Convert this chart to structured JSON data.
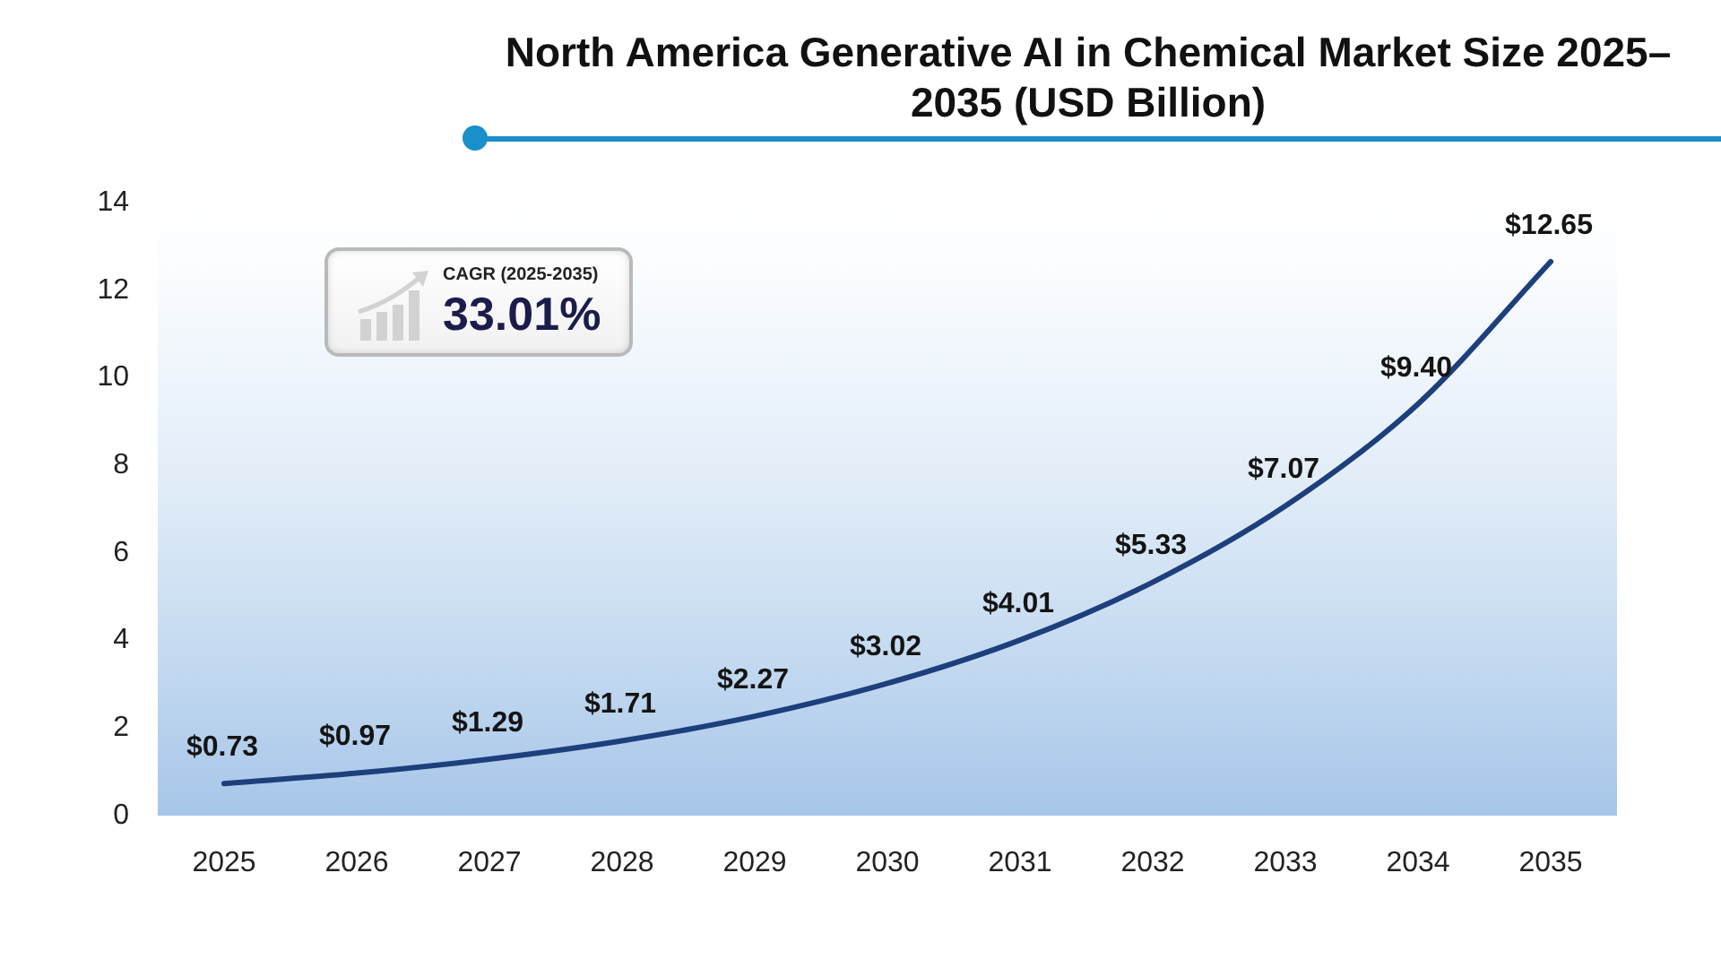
{
  "chart_data": {
    "type": "line",
    "title": "North America Generative AI in Chemical Market Size 2025–2035 (USD Billion)",
    "categories": [
      "2025",
      "2026",
      "2027",
      "2028",
      "2029",
      "2030",
      "2031",
      "2032",
      "2033",
      "2034",
      "2035"
    ],
    "values": [
      0.73,
      0.97,
      1.29,
      1.71,
      2.27,
      3.02,
      4.01,
      5.33,
      7.07,
      9.4,
      12.65
    ],
    "value_labels": [
      "$0.73",
      "$0.97",
      "$1.29",
      "$1.71",
      "$2.27",
      "$3.02",
      "$4.01",
      "$5.33",
      "$7.07",
      "$9.40",
      "$12.65"
    ],
    "color": "#1d3f7c",
    "ylim": [
      0,
      14
    ],
    "yticks": [
      0,
      2,
      4,
      6,
      8,
      10,
      12,
      14
    ],
    "marker": "none",
    "line_style": "solid",
    "annotations": [
      "CAGR (2025-2035)",
      "33.01%"
    ]
  }
}
